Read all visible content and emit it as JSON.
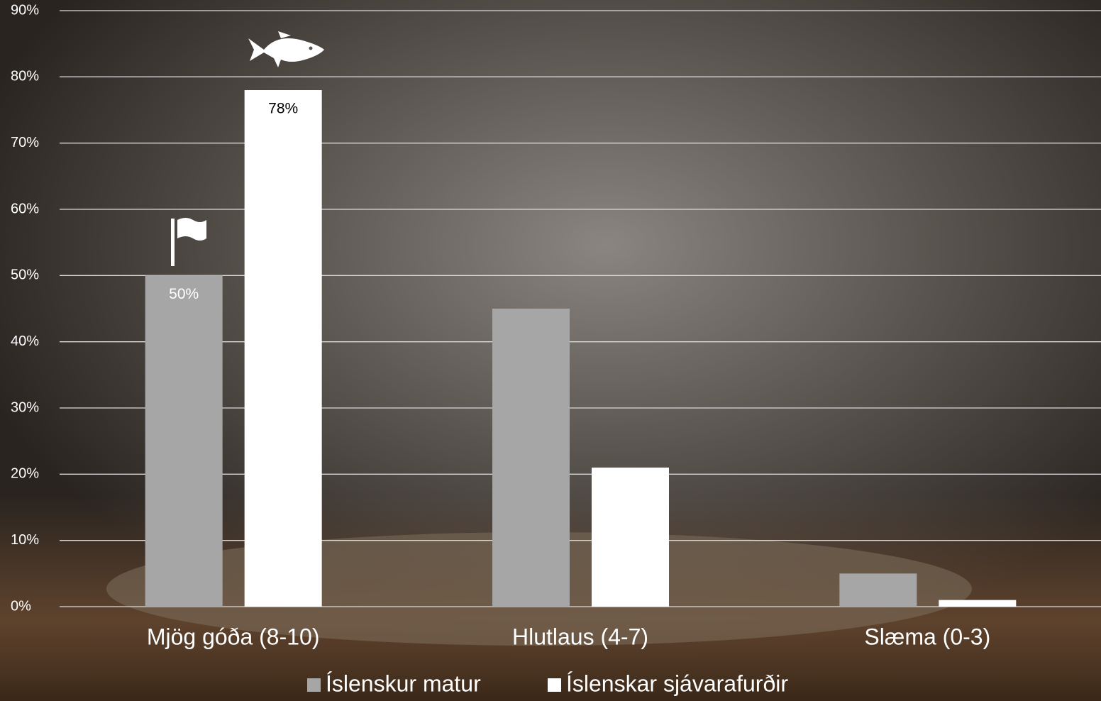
{
  "chart_data": {
    "type": "bar",
    "categories": [
      "Mjög góða (8-10)",
      "Hlutlaus (4-7)",
      "Slæma (0-3)"
    ],
    "series": [
      {
        "name": "Íslenskur matur",
        "color": "#a6a6a6",
        "values": [
          50,
          45,
          5
        ],
        "value_labels": [
          "50%",
          null,
          null
        ]
      },
      {
        "name": "Íslenskar sjávarafurðir",
        "color": "#ffffff",
        "values": [
          78,
          21,
          1
        ],
        "value_labels": [
          "78%",
          null,
          null
        ]
      }
    ],
    "ylim": [
      0,
      90
    ],
    "yticks": [
      {
        "value": 0,
        "label": "0%"
      },
      {
        "value": 10,
        "label": "10%"
      },
      {
        "value": 20,
        "label": "20%"
      },
      {
        "value": 30,
        "label": "30%"
      },
      {
        "value": 40,
        "label": "40%"
      },
      {
        "value": 50,
        "label": "50%"
      },
      {
        "value": 60,
        "label": "60%"
      },
      {
        "value": 70,
        "label": "70%"
      },
      {
        "value": 80,
        "label": "80%"
      },
      {
        "value": 90,
        "label": "90%"
      }
    ],
    "grid": true
  }
}
